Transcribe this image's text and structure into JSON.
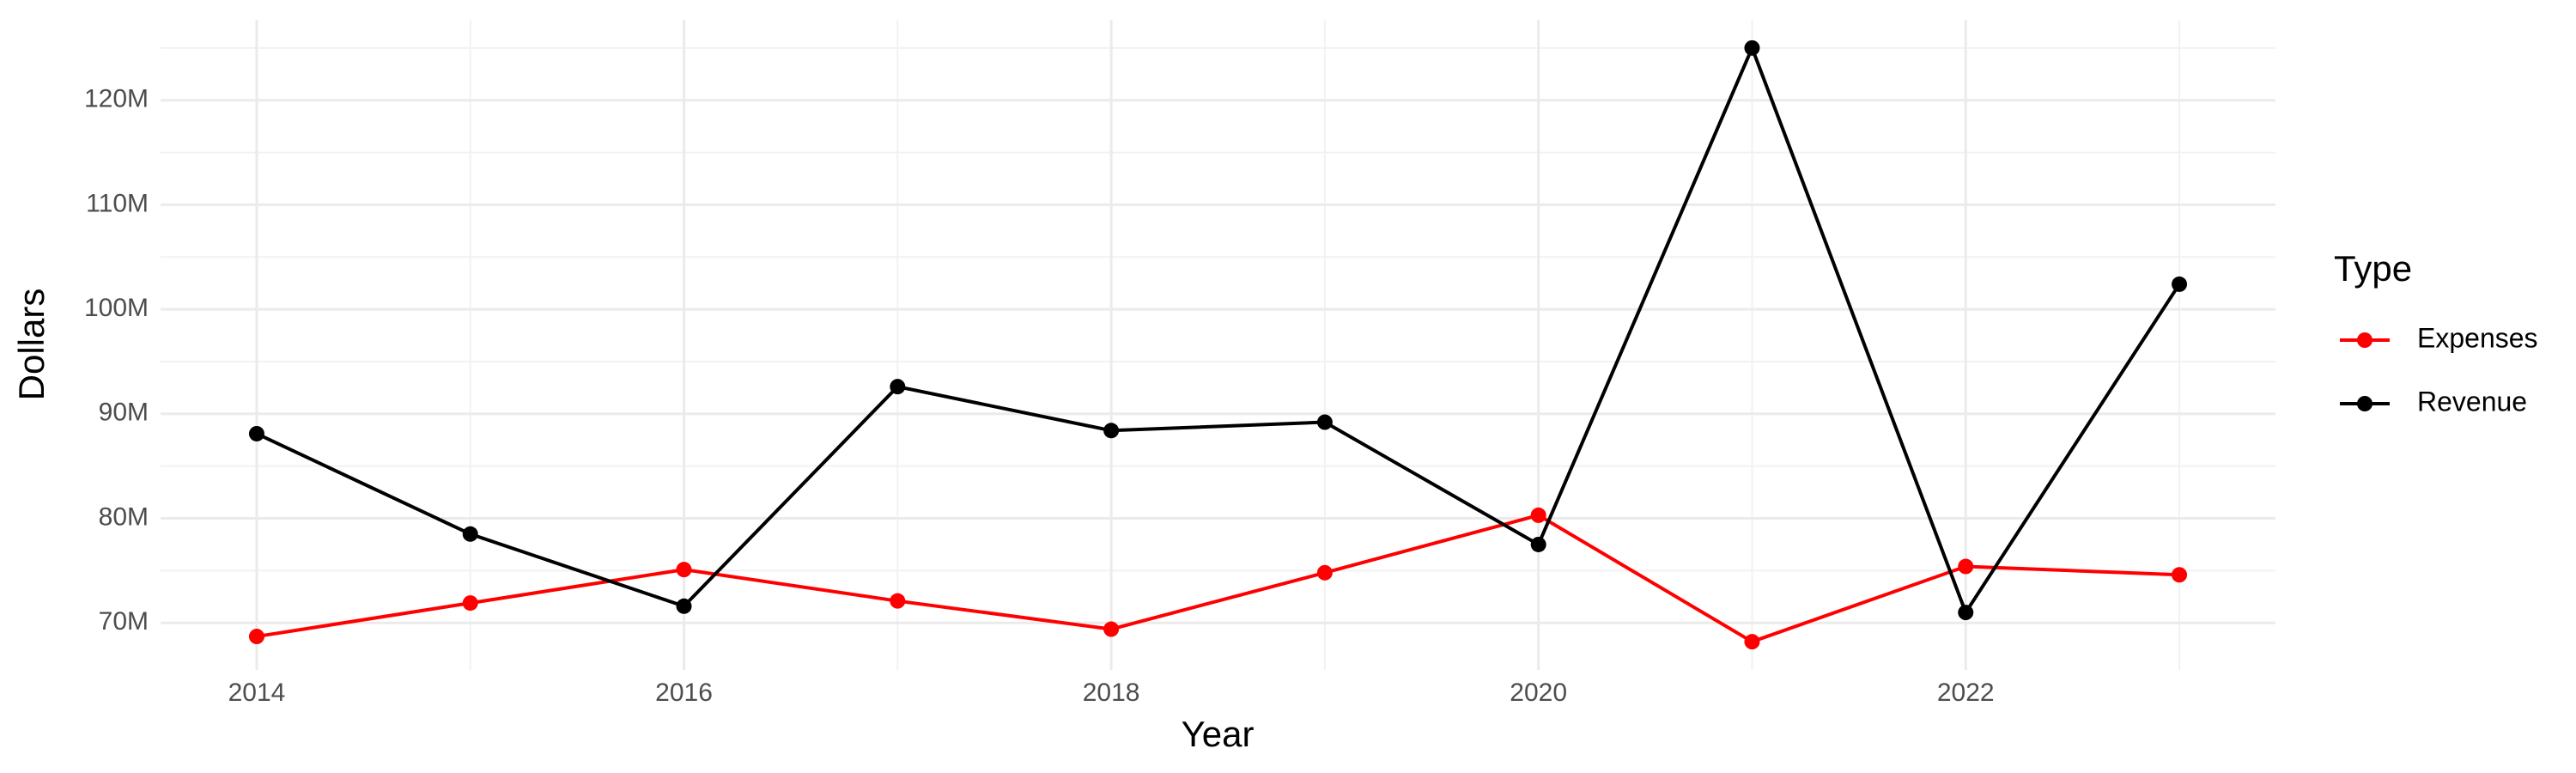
{
  "chart_data": {
    "type": "line",
    "x_label": "Year",
    "y_label": "Dollars",
    "legend_title": "Type",
    "x": [
      2014,
      2015,
      2016,
      2017,
      2018,
      2019,
      2020,
      2021,
      2022,
      2023
    ],
    "series": [
      {
        "name": "Expenses",
        "color": "#ff0000",
        "values": [
          68700000,
          71900000,
          75100000,
          72100000,
          69400000,
          74800000,
          80300000,
          68200000,
          75400000,
          74600000
        ]
      },
      {
        "name": "Revenue",
        "color": "#000000",
        "values": [
          88100000,
          78500000,
          71600000,
          92600000,
          88400000,
          89200000,
          77500000,
          125000000,
          71000000,
          102400000
        ]
      }
    ],
    "xlim": [
      2013.55,
      2023.45
    ],
    "xticks": [
      2014,
      2016,
      2018,
      2020,
      2022
    ],
    "ylim": [
      65500000,
      127700000
    ],
    "yticks": [
      {
        "value": 70000000,
        "label": "70M"
      },
      {
        "value": 80000000,
        "label": "80M"
      },
      {
        "value": 90000000,
        "label": "90M"
      },
      {
        "value": 100000000,
        "label": "100M"
      },
      {
        "value": 110000000,
        "label": "110M"
      },
      {
        "value": 120000000,
        "label": "120M"
      }
    ],
    "grid": true,
    "legend_position": "right"
  }
}
